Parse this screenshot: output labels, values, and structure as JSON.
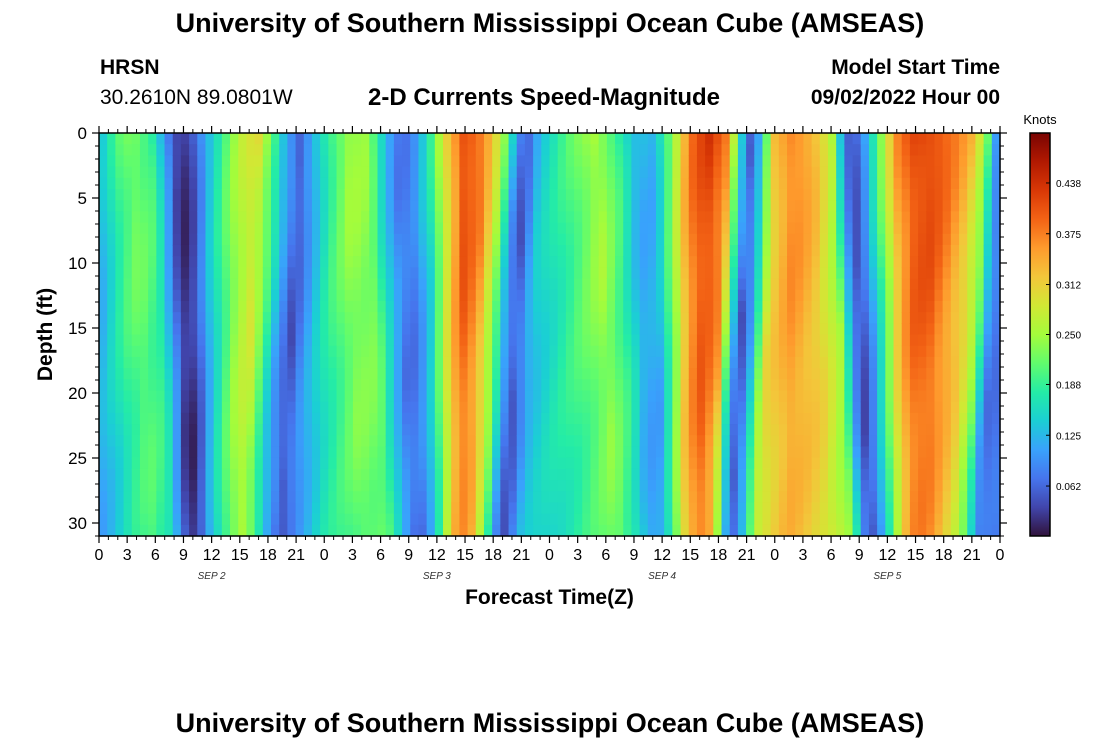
{
  "header": {
    "title": "University of Southern Mississippi Ocean Cube (AMSEAS)",
    "station": "HRSN",
    "coordinates": "30.2610N  89.0801W",
    "chart_title": "2-D Currents Speed-Magnitude",
    "model_start_label": "Model Start Time",
    "model_start_value": "09/02/2022 Hour 00"
  },
  "footer": {
    "title": "University of Southern Mississippi Ocean Cube (AMSEAS)"
  },
  "chart_data": {
    "type": "heatmap",
    "title": "2-D Currents Speed-Magnitude",
    "xlabel": "Forecast Time(Z)",
    "ylabel": "Depth (ft)",
    "x_range_hours": [
      0,
      96
    ],
    "y_range_ft": [
      0,
      31
    ],
    "y_ticks": [
      0,
      5,
      10,
      15,
      20,
      25,
      30
    ],
    "x_tick_labels": [
      "0",
      "3",
      "6",
      "9",
      "12",
      "15",
      "18",
      "21",
      "0",
      "3",
      "6",
      "9",
      "12",
      "15",
      "18",
      "21",
      "0",
      "3",
      "6",
      "9",
      "12",
      "15",
      "18",
      "21",
      "0",
      "3",
      "6",
      "9",
      "12",
      "15",
      "18",
      "21",
      "0"
    ],
    "day_labels": [
      {
        "label": "SEP 2",
        "hour": 12
      },
      {
        "label": "SEP 3",
        "hour": 36
      },
      {
        "label": "SEP 4",
        "hour": 60
      },
      {
        "label": "SEP 5",
        "hour": 84
      }
    ],
    "colorbar": {
      "label": "Knots",
      "ticks": [
        "0.438",
        "0.375",
        "0.312",
        "0.250",
        "0.188",
        "0.125",
        "0.062"
      ],
      "tick_values": [
        0.438,
        0.375,
        0.312,
        0.25,
        0.188,
        0.125,
        0.062
      ],
      "range": [
        0,
        0.5
      ],
      "colors": [
        "#30123b",
        "#4145ab",
        "#4675ed",
        "#39a2fc",
        "#1bcfd4",
        "#24eca6",
        "#61fc6c",
        "#a4fc3b",
        "#d1e834",
        "#f3c63a",
        "#fe9b2d",
        "#f36315",
        "#d93806",
        "#b11901",
        "#7a0402"
      ]
    },
    "surface_speed_by_hour": [
      {
        "hour": 0,
        "value": 0.12
      },
      {
        "hour": 1,
        "value": 0.16
      },
      {
        "hour": 2,
        "value": 0.2
      },
      {
        "hour": 3.5,
        "value": 0.23
      },
      {
        "hour": 5.5,
        "value": 0.2
      },
      {
        "hour": 7,
        "value": 0.1
      },
      {
        "hour": 8,
        "value": 0.03
      },
      {
        "hour": 9,
        "value": 0.02
      },
      {
        "hour": 10,
        "value": 0.05
      },
      {
        "hour": 11.5,
        "value": 0.13
      },
      {
        "hour": 13,
        "value": 0.19
      },
      {
        "hour": 15,
        "value": 0.26
      },
      {
        "hour": 17,
        "value": 0.3
      },
      {
        "hour": 18.5,
        "value": 0.22
      },
      {
        "hour": 20,
        "value": 0.12
      },
      {
        "hour": 21.5,
        "value": 0.05
      },
      {
        "hour": 23,
        "value": 0.12
      },
      {
        "hour": 24.5,
        "value": 0.19
      },
      {
        "hour": 26.5,
        "value": 0.25
      },
      {
        "hour": 28.5,
        "value": 0.24
      },
      {
        "hour": 30,
        "value": 0.15
      },
      {
        "hour": 31.5,
        "value": 0.08
      },
      {
        "hour": 33,
        "value": 0.08
      },
      {
        "hour": 35,
        "value": 0.16
      },
      {
        "hour": 37,
        "value": 0.3
      },
      {
        "hour": 39,
        "value": 0.42
      },
      {
        "hour": 41,
        "value": 0.38
      },
      {
        "hour": 43,
        "value": 0.25
      },
      {
        "hour": 44.5,
        "value": 0.1
      },
      {
        "hour": 45.5,
        "value": 0.05
      },
      {
        "hour": 47,
        "value": 0.14
      },
      {
        "hour": 49,
        "value": 0.18
      },
      {
        "hour": 51,
        "value": 0.22
      },
      {
        "hour": 53,
        "value": 0.26
      },
      {
        "hour": 55,
        "value": 0.2
      },
      {
        "hour": 57,
        "value": 0.12
      },
      {
        "hour": 59,
        "value": 0.12
      },
      {
        "hour": 61,
        "value": 0.24
      },
      {
        "hour": 63,
        "value": 0.38
      },
      {
        "hour": 65,
        "value": 0.43
      },
      {
        "hour": 67,
        "value": 0.38
      },
      {
        "hour": 68.5,
        "value": 0.15
      },
      {
        "hour": 69.5,
        "value": 0.05
      },
      {
        "hour": 70.5,
        "value": 0.12
      },
      {
        "hour": 72,
        "value": 0.32
      },
      {
        "hour": 74,
        "value": 0.38
      },
      {
        "hour": 76,
        "value": 0.34
      },
      {
        "hour": 78,
        "value": 0.26
      },
      {
        "hour": 79,
        "value": 0.12
      },
      {
        "hour": 80,
        "value": 0.04
      },
      {
        "hour": 81,
        "value": 0.08
      },
      {
        "hour": 82.5,
        "value": 0.18
      },
      {
        "hour": 85,
        "value": 0.36
      },
      {
        "hour": 87,
        "value": 0.42
      },
      {
        "hour": 89,
        "value": 0.42
      },
      {
        "hour": 91,
        "value": 0.38
      },
      {
        "hour": 93,
        "value": 0.33
      },
      {
        "hour": 94.5,
        "value": 0.25
      },
      {
        "hour": 95.5,
        "value": 0.12
      },
      {
        "hour": 96,
        "value": 0.08
      }
    ]
  }
}
